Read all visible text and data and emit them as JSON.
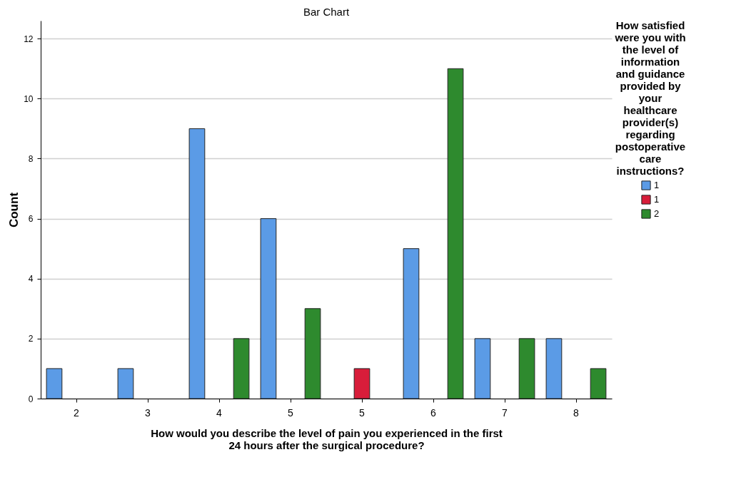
{
  "chart_data": {
    "type": "bar",
    "title": "Bar Chart",
    "xlabel": "How would you describe the level of pain you experienced in the first 24 hours after the surgical procedure?",
    "ylabel": "Count",
    "legend_title": "How satisfied were you with the level of information and guidance provided by your healthcare provider(s) regarding postoperative care instructions?",
    "categories": [
      "2",
      "3",
      "4",
      "5",
      "5",
      "6",
      "7",
      "8"
    ],
    "series": [
      {
        "name": "1",
        "color": "#5b9be6",
        "values": [
          1,
          1,
          9,
          6,
          null,
          5,
          2,
          2
        ]
      },
      {
        "name": "1",
        "color": "#d81d3a",
        "values": [
          null,
          null,
          null,
          null,
          1,
          null,
          null,
          null
        ]
      },
      {
        "name": "2",
        "color": "#2e8a2e",
        "values": [
          null,
          null,
          2,
          3,
          null,
          11,
          2,
          1
        ]
      }
    ],
    "ylim": [
      0,
      12.6
    ],
    "yticks": [
      0,
      2,
      4,
      6,
      8,
      10,
      12
    ],
    "grid": "y",
    "legend": "top right"
  }
}
